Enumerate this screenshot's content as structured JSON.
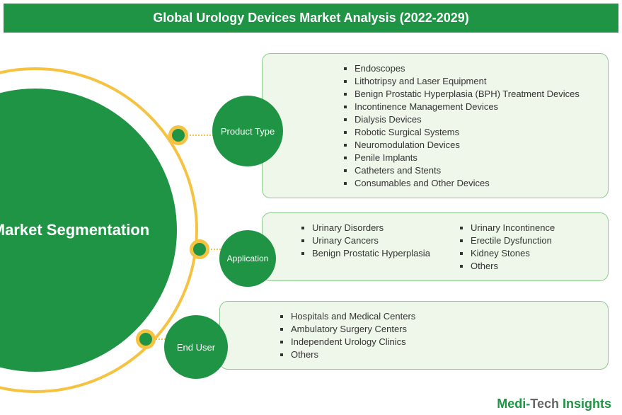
{
  "header": {
    "title": "Global Urology Devices Market Analysis (2022-2029)"
  },
  "mainCircle": {
    "label": "Market Segmentation"
  },
  "colors": {
    "primary": "#1e9444",
    "accent": "#f5c242",
    "panelBg": "#eef7ea",
    "panelBorder": "#8fc98f"
  },
  "categories": {
    "productType": {
      "label": "Product Type",
      "items": [
        "Endoscopes",
        "Lithotripsy and Laser Equipment",
        "Benign Prostatic Hyperplasia (BPH) Treatment Devices",
        "Incontinence Management Devices",
        "Dialysis Devices",
        "Robotic Surgical Systems",
        "Neuromodulation Devices",
        "Penile Implants",
        "Catheters and Stents",
        "Consumables and Other Devices"
      ]
    },
    "application": {
      "label": "Application",
      "col1": [
        "Urinary Disorders",
        "Urinary Cancers",
        "Benign Prostatic Hyperplasia"
      ],
      "col2": [
        "Urinary Incontinence",
        "Erectile Dysfunction",
        "Kidney Stones",
        "Others"
      ]
    },
    "endUser": {
      "label": "End User",
      "items": [
        "Hospitals and Medical Centers",
        "Ambulatory Surgery Centers",
        "Independent Urology Clinics",
        "Others"
      ]
    }
  },
  "footer": {
    "part1": "Medi-",
    "part2": "Tech ",
    "part3": "Insights"
  }
}
